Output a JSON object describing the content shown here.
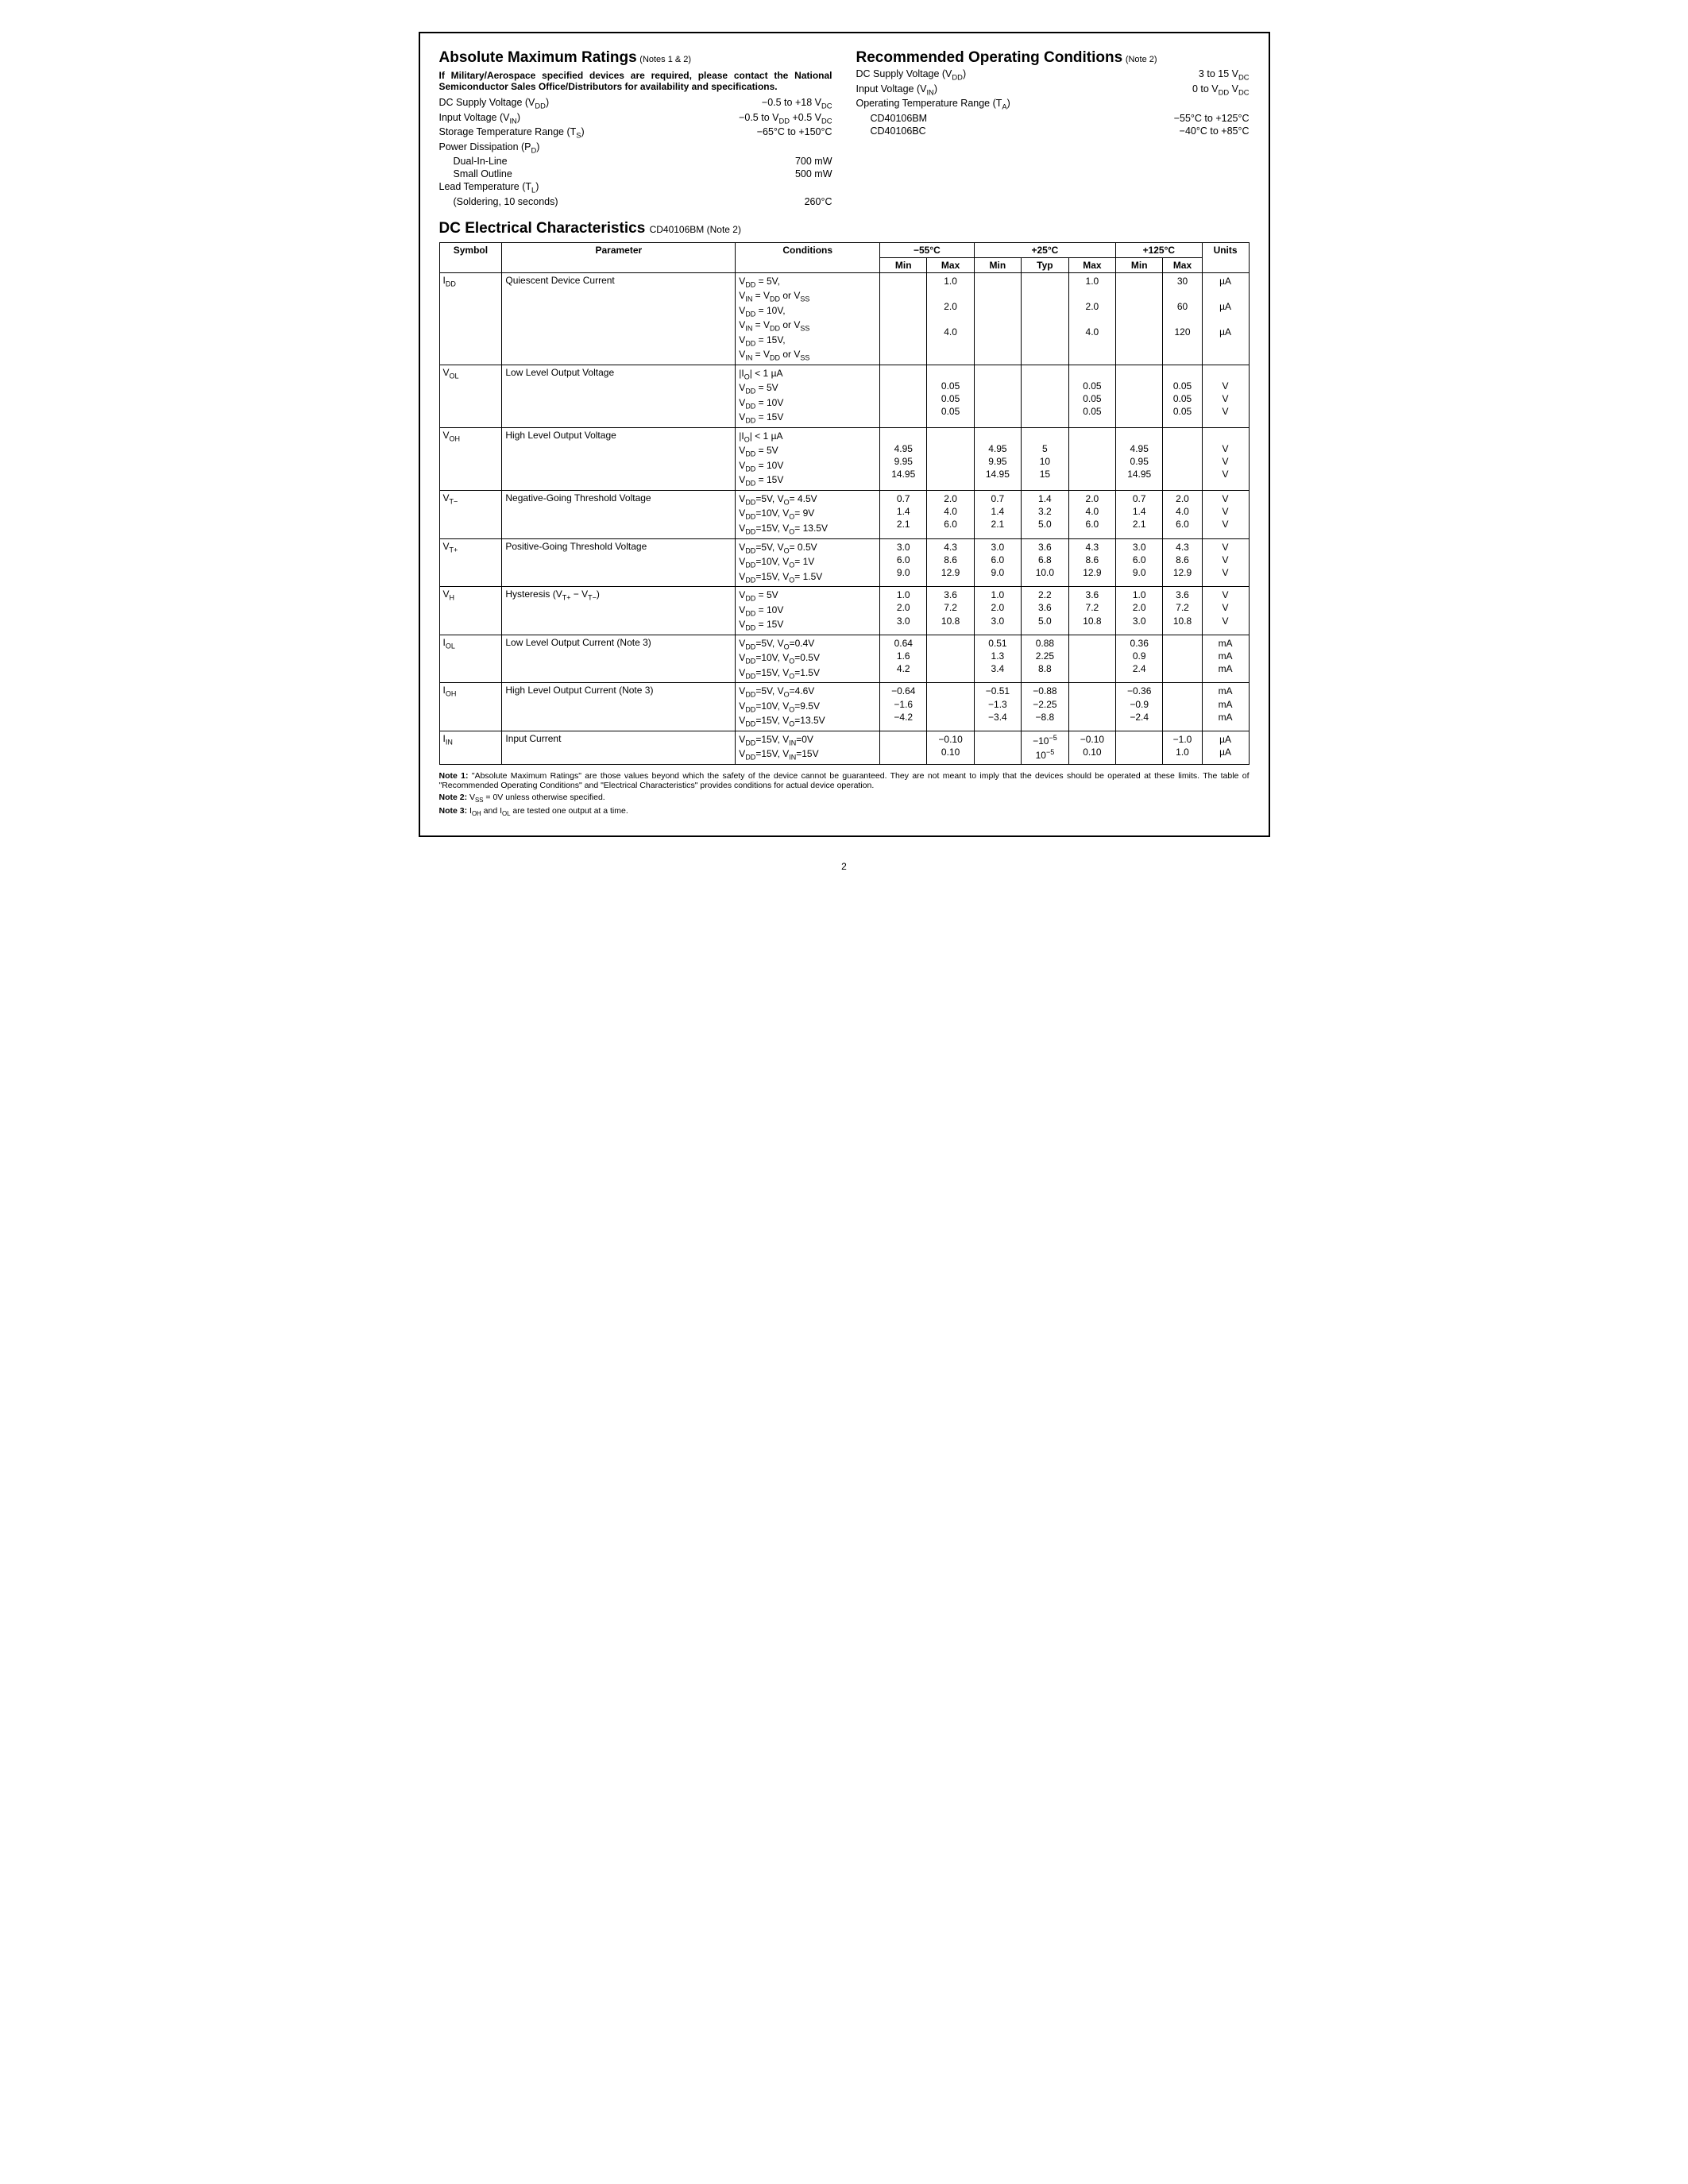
{
  "page_number": "2",
  "left": {
    "title": "Absolute Maximum Ratings",
    "title_note": "(Notes 1 & 2)",
    "bold_note": "If Military/Aerospace specified devices are required, please contact the National Semiconductor Sales Office/Distributors for availability and specifications.",
    "rows": [
      {
        "label_html": "DC Supply Voltage (V<sub>DD</sub>)",
        "value_html": "<span class='minus'></span>0.5 to +18 V<sub>DC</sub>"
      },
      {
        "label_html": "Input Voltage (V<sub>IN</sub>)",
        "value_html": "<span class='minus'></span>0.5 to V<sub>DD</sub> +0.5 V<sub>DC</sub>"
      },
      {
        "label_html": "Storage Temperature Range (T<sub>S</sub>)",
        "value_html": "<span class='minus'></span>65°C to +150°C"
      },
      {
        "label_html": "Power Dissipation (P<sub>D</sub>)",
        "value_html": ""
      },
      {
        "label_html": "Dual-In-Line",
        "value_html": "700 mW",
        "indent": true
      },
      {
        "label_html": "Small Outline",
        "value_html": "500 mW",
        "indent": true
      },
      {
        "label_html": "Lead Temperature (T<sub>L</sub>)",
        "value_html": ""
      },
      {
        "label_html": "(Soldering, 10 seconds)",
        "value_html": "260°C",
        "indent": true
      }
    ]
  },
  "right": {
    "title": "Recommended Operating Conditions",
    "title_note": "(Note 2)",
    "rows": [
      {
        "label_html": "DC Supply Voltage (V<sub>DD</sub>)",
        "value_html": "3 to 15 V<sub>DC</sub>"
      },
      {
        "label_html": "Input Voltage (V<sub>IN</sub>)",
        "value_html": "0 to V<sub>DD</sub> V<sub>DC</sub>"
      },
      {
        "label_html": "Operating Temperature Range (T<sub>A</sub>)",
        "value_html": ""
      },
      {
        "label_html": "CD40106BM",
        "value_html": "<span class='minus'></span>55°C to +125°C",
        "indent": true
      },
      {
        "label_html": "CD40106BC",
        "value_html": "<span class='minus'></span>40°C to +85°C",
        "indent": true
      }
    ]
  },
  "dc_title": "DC Electrical Characteristics",
  "dc_sub": "CD40106BM (Note 2)",
  "table": {
    "temp_headers": [
      "−55°C",
      "+25°C",
      "+125°C"
    ],
    "sub_headers_55": [
      "Min",
      "Max"
    ],
    "sub_headers_25": [
      "Min",
      "Typ",
      "Max"
    ],
    "sub_headers_125": [
      "Min",
      "Max"
    ],
    "col_labels": {
      "symbol": "Symbol",
      "parameter": "Parameter",
      "conditions": "Conditions",
      "units": "Units"
    },
    "rows": [
      {
        "symbol_html": "I<sub>DD</sub>",
        "param": "Quiescent Device Current",
        "cond_lines_html": [
          "V<sub>DD</sub> = 5V,",
          "V<sub>IN</sub> = V<sub>DD</sub> or V<sub>SS</sub>",
          "V<sub>DD</sub> = 10V,",
          "V<sub>IN</sub> = V<sub>DD</sub> or V<sub>SS</sub>",
          "V<sub>DD</sub> = 15V,",
          "V<sub>IN</sub> = V<sub>DD</sub> or V<sub>SS</sub>"
        ],
        "data_lines": [
          {
            "min55": "",
            "max55": "1.0",
            "min25": "",
            "typ25": "",
            "max25": "1.0",
            "min125": "",
            "max125": "30",
            "u": "µA"
          },
          {
            "blank": true
          },
          {
            "min55": "",
            "max55": "2.0",
            "min25": "",
            "typ25": "",
            "max25": "2.0",
            "min125": "",
            "max125": "60",
            "u": "µA"
          },
          {
            "blank": true
          },
          {
            "min55": "",
            "max55": "4.0",
            "min25": "",
            "typ25": "",
            "max25": "4.0",
            "min125": "",
            "max125": "120",
            "u": "µA"
          },
          {
            "blank": true
          }
        ]
      },
      {
        "symbol_html": "V<sub>OL</sub>",
        "param": "Low Level Output Voltage",
        "cond_lines_html": [
          "|I<sub>O</sub>| &lt; 1 µA",
          "V<sub>DD</sub> = 5V",
          "V<sub>DD</sub> = 10V",
          "V<sub>DD</sub> = 15V"
        ],
        "data_lines": [
          {
            "blank": true
          },
          {
            "min55": "",
            "max55": "0.05",
            "min25": "",
            "typ25": "",
            "max25": "0.05",
            "min125": "",
            "max125": "0.05",
            "u": "V"
          },
          {
            "min55": "",
            "max55": "0.05",
            "min25": "",
            "typ25": "",
            "max25": "0.05",
            "min125": "",
            "max125": "0.05",
            "u": "V"
          },
          {
            "min55": "",
            "max55": "0.05",
            "min25": "",
            "typ25": "",
            "max25": "0.05",
            "min125": "",
            "max125": "0.05",
            "u": "V"
          }
        ]
      },
      {
        "symbol_html": "V<sub>OH</sub>",
        "param": "High Level Output Voltage",
        "cond_lines_html": [
          "|I<sub>O</sub>| &lt; 1 µA",
          "V<sub>DD</sub> = 5V",
          "V<sub>DD</sub> = 10V",
          "V<sub>DD</sub> = 15V"
        ],
        "data_lines": [
          {
            "blank": true
          },
          {
            "min55": "4.95",
            "max55": "",
            "min25": "4.95",
            "typ25": "5",
            "max25": "",
            "min125": "4.95",
            "max125": "",
            "u": "V"
          },
          {
            "min55": "9.95",
            "max55": "",
            "min25": "9.95",
            "typ25": "10",
            "max25": "",
            "min125": "0.95",
            "max125": "",
            "u": "V"
          },
          {
            "min55": "14.95",
            "max55": "",
            "min25": "14.95",
            "typ25": "15",
            "max25": "",
            "min125": "14.95",
            "max125": "",
            "u": "V"
          }
        ]
      },
      {
        "symbol_html": "V<sub>T−</sub>",
        "param": "Negative-Going Threshold Voltage",
        "cond_lines_html": [
          "V<sub>DD</sub>=5V, V<sub>O</sub>= 4.5V",
          "V<sub>DD</sub>=10V, V<sub>O</sub>= 9V",
          "V<sub>DD</sub>=15V, V<sub>O</sub>= 13.5V"
        ],
        "data_lines": [
          {
            "min55": "0.7",
            "max55": "2.0",
            "min25": "0.7",
            "typ25": "1.4",
            "max25": "2.0",
            "min125": "0.7",
            "max125": "2.0",
            "u": "V"
          },
          {
            "min55": "1.4",
            "max55": "4.0",
            "min25": "1.4",
            "typ25": "3.2",
            "max25": "4.0",
            "min125": "1.4",
            "max125": "4.0",
            "u": "V"
          },
          {
            "min55": "2.1",
            "max55": "6.0",
            "min25": "2.1",
            "typ25": "5.0",
            "max25": "6.0",
            "min125": "2.1",
            "max125": "6.0",
            "u": "V"
          }
        ]
      },
      {
        "symbol_html": "V<sub>T+</sub>",
        "param": "Positive-Going Threshold Voltage",
        "cond_lines_html": [
          "V<sub>DD</sub>=5V, V<sub>O</sub>= 0.5V",
          "V<sub>DD</sub>=10V, V<sub>O</sub>= 1V",
          "V<sub>DD</sub>=15V, V<sub>O</sub>= 1.5V"
        ],
        "data_lines": [
          {
            "min55": "3.0",
            "max55": "4.3",
            "min25": "3.0",
            "typ25": "3.6",
            "max25": "4.3",
            "min125": "3.0",
            "max125": "4.3",
            "u": "V"
          },
          {
            "min55": "6.0",
            "max55": "8.6",
            "min25": "6.0",
            "typ25": "6.8",
            "max25": "8.6",
            "min125": "6.0",
            "max125": "8.6",
            "u": "V"
          },
          {
            "min55": "9.0",
            "max55": "12.9",
            "min25": "9.0",
            "typ25": "10.0",
            "max25": "12.9",
            "min125": "9.0",
            "max125": "12.9",
            "u": "V"
          }
        ]
      },
      {
        "symbol_html": "V<sub>H</sub>",
        "param_html": "Hysteresis (V<sub>T+</sub> − V<sub>T−</sub>)",
        "cond_lines_html": [
          "V<sub>DD</sub> = 5V",
          "V<sub>DD</sub> = 10V",
          "V<sub>DD</sub> = 15V"
        ],
        "data_lines": [
          {
            "min55": "1.0",
            "max55": "3.6",
            "min25": "1.0",
            "typ25": "2.2",
            "max25": "3.6",
            "min125": "1.0",
            "max125": "3.6",
            "u": "V"
          },
          {
            "min55": "2.0",
            "max55": "7.2",
            "min25": "2.0",
            "typ25": "3.6",
            "max25": "7.2",
            "min125": "2.0",
            "max125": "7.2",
            "u": "V"
          },
          {
            "min55": "3.0",
            "max55": "10.8",
            "min25": "3.0",
            "typ25": "5.0",
            "max25": "10.8",
            "min125": "3.0",
            "max125": "10.8",
            "u": "V"
          }
        ]
      },
      {
        "symbol_html": "I<sub>OL</sub>",
        "param": "Low Level Output Current (Note 3)",
        "cond_lines_html": [
          "V<sub>DD</sub>=5V, V<sub>O</sub>=0.4V",
          "V<sub>DD</sub>=10V, V<sub>O</sub>=0.5V",
          "V<sub>DD</sub>=15V, V<sub>O</sub>=1.5V"
        ],
        "data_lines": [
          {
            "min55": "0.64",
            "max55": "",
            "min25": "0.51",
            "typ25": "0.88",
            "max25": "",
            "min125": "0.36",
            "max125": "",
            "u": "mA"
          },
          {
            "min55": "1.6",
            "max55": "",
            "min25": "1.3",
            "typ25": "2.25",
            "max25": "",
            "min125": "0.9",
            "max125": "",
            "u": "mA"
          },
          {
            "min55": "4.2",
            "max55": "",
            "min25": "3.4",
            "typ25": "8.8",
            "max25": "",
            "min125": "2.4",
            "max125": "",
            "u": "mA"
          }
        ]
      },
      {
        "symbol_html": "I<sub>OH</sub>",
        "param": "High Level Output Current (Note 3)",
        "cond_lines_html": [
          "V<sub>DD</sub>=5V, V<sub>O</sub>=4.6V",
          "V<sub>DD</sub>=10V, V<sub>O</sub>=9.5V",
          "V<sub>DD</sub>=15V, V<sub>O</sub>=13.5V"
        ],
        "data_lines": [
          {
            "min55": "−0.64",
            "max55": "",
            "min25": "−0.51",
            "typ25": "−0.88",
            "max25": "",
            "min125": "−0.36",
            "max125": "",
            "u": "mA"
          },
          {
            "min55": "−1.6",
            "max55": "",
            "min25": "−1.3",
            "typ25": "−2.25",
            "max25": "",
            "min125": "−0.9",
            "max125": "",
            "u": "mA"
          },
          {
            "min55": "−4.2",
            "max55": "",
            "min25": "−3.4",
            "typ25": "−8.8",
            "max25": "",
            "min125": "−2.4",
            "max125": "",
            "u": "mA"
          }
        ]
      },
      {
        "symbol_html": "I<sub>IN</sub>",
        "param": "Input Current",
        "cond_lines_html": [
          "V<sub>DD</sub>=15V, V<sub>IN</sub>=0V",
          "V<sub>DD</sub>=15V, V<sub>IN</sub>=15V"
        ],
        "data_lines": [
          {
            "min55": "",
            "max55": "−0.10",
            "min25": "",
            "typ25_html": "−10<sup>−5</sup>",
            "max25": "−0.10",
            "min125": "",
            "max125": "−1.0",
            "u": "µA"
          },
          {
            "min55": "",
            "max55": "0.10",
            "min25": "",
            "typ25_html": "10<sup>−5</sup>",
            "max25": "0.10",
            "min125": "",
            "max125": "1.0",
            "u": "µA"
          }
        ]
      }
    ]
  },
  "notes": [
    {
      "label": "Note 1:",
      "text": "\"Absolute Maximum Ratings\" are those values beyond which the safety of the device cannot be guaranteed. They are not meant to imply that the devices should be operated at these limits. The table of \"Recommended Operating Conditions\" and \"Electrical Characteristics\" provides conditions for actual device operation."
    },
    {
      "label": "Note 2:",
      "text_html": "V<sub>SS</sub> = 0V unless otherwise specified."
    },
    {
      "label": "Note 3:",
      "text_html": "I<sub>OH</sub> and I<sub>OL</sub> are tested one output at a time."
    }
  ]
}
